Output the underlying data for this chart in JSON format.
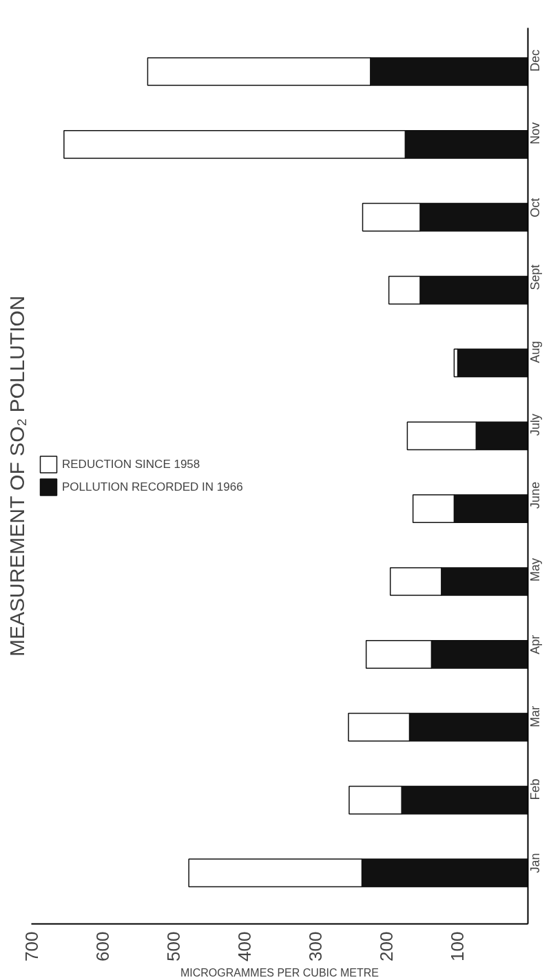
{
  "chart_data": {
    "type": "bar",
    "orientation": "horizontal",
    "stacked": true,
    "title": "MEASUREMENT OF SO₂ POLLUTION",
    "xlabel": "MICROGRAMMES PER CUBIC METRE",
    "categories": [
      "Dec",
      "Nov",
      "Oct",
      "Sept",
      "Aug",
      "July",
      "June",
      "May",
      "Apr",
      "Mar",
      "Feb",
      "Jan"
    ],
    "series": [
      {
        "name": "POLLUTION RECORDED IN 1966",
        "color": "#111111",
        "values": [
          222,
          173,
          152,
          152,
          99,
          73,
          104,
          122,
          136,
          167,
          178,
          234
        ]
      },
      {
        "name": "REDUCTION SINCE 1958",
        "color": "#ffffff",
        "values": [
          314,
          481,
          81,
          44,
          5,
          97,
          58,
          72,
          92,
          86,
          74,
          244
        ]
      }
    ],
    "xlim": [
      700,
      0
    ],
    "xticks": [
      100,
      200,
      300,
      400,
      500,
      600,
      700
    ],
    "grid": false,
    "legend": "left"
  }
}
